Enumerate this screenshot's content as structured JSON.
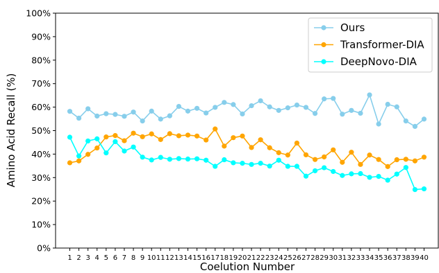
{
  "chart_data": {
    "type": "line",
    "xlabel": "Coelution Number",
    "ylabel": "Amino Acid Recall (%)",
    "ylim": [
      0,
      1
    ],
    "yticks": [
      "0%",
      "10%",
      "20%",
      "30%",
      "40%",
      "50%",
      "60%",
      "70%",
      "80%",
      "90%",
      "100%"
    ],
    "x": [
      1,
      2,
      3,
      4,
      5,
      6,
      7,
      8,
      9,
      10,
      11,
      12,
      13,
      14,
      15,
      16,
      17,
      18,
      19,
      20,
      21,
      22,
      23,
      24,
      25,
      26,
      27,
      28,
      29,
      30,
      31,
      32,
      33,
      34,
      35,
      36,
      37,
      38,
      39,
      40
    ],
    "grid": false,
    "legend_position": "top-right",
    "series": [
      {
        "name": "Ours",
        "color": "#87ceeb",
        "values": [
          0.582,
          0.553,
          0.593,
          0.562,
          0.572,
          0.569,
          0.561,
          0.579,
          0.541,
          0.583,
          0.549,
          0.563,
          0.603,
          0.583,
          0.595,
          0.575,
          0.599,
          0.62,
          0.611,
          0.571,
          0.606,
          0.627,
          0.601,
          0.586,
          0.597,
          0.609,
          0.599,
          0.573,
          0.635,
          0.637,
          0.57,
          0.586,
          0.574,
          0.652,
          0.528,
          0.612,
          0.601,
          0.541,
          0.518,
          0.549
        ]
      },
      {
        "name": "Transformer-DIA",
        "color": "#ffa500",
        "values": [
          0.363,
          0.371,
          0.399,
          0.426,
          0.473,
          0.479,
          0.457,
          0.489,
          0.474,
          0.486,
          0.462,
          0.487,
          0.478,
          0.481,
          0.477,
          0.46,
          0.507,
          0.434,
          0.47,
          0.477,
          0.428,
          0.461,
          0.427,
          0.406,
          0.396,
          0.447,
          0.397,
          0.377,
          0.388,
          0.418,
          0.365,
          0.408,
          0.356,
          0.396,
          0.377,
          0.347,
          0.376,
          0.378,
          0.371,
          0.387
        ]
      },
      {
        "name": "DeepNovo-DIA",
        "color": "#00ffff",
        "values": [
          0.472,
          0.392,
          0.456,
          0.465,
          0.405,
          0.453,
          0.413,
          0.43,
          0.387,
          0.375,
          0.386,
          0.378,
          0.381,
          0.379,
          0.38,
          0.374,
          0.348,
          0.376,
          0.363,
          0.361,
          0.356,
          0.361,
          0.349,
          0.374,
          0.348,
          0.348,
          0.306,
          0.329,
          0.342,
          0.326,
          0.309,
          0.316,
          0.317,
          0.301,
          0.305,
          0.289,
          0.315,
          0.343,
          0.249,
          0.252
        ]
      }
    ]
  }
}
